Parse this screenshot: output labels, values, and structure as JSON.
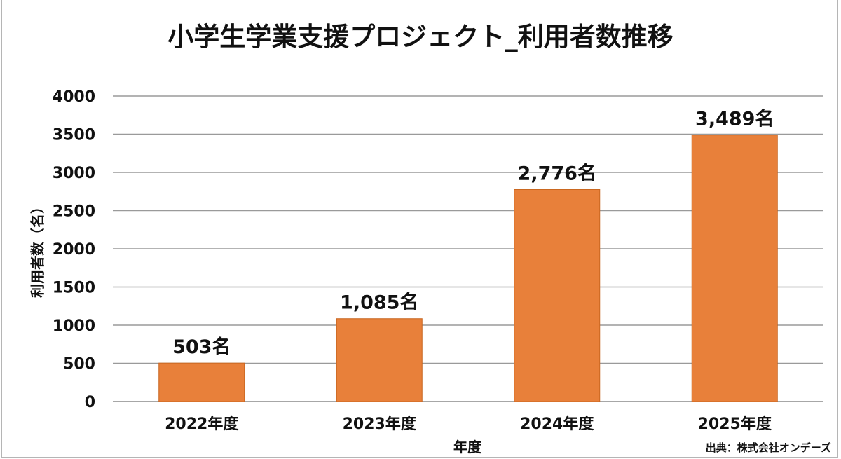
{
  "chart_data": {
    "type": "bar",
    "title": "小学生学業支援プロジェクト_利用者数推移",
    "xlabel": "年度",
    "ylabel": "利用者数（名）",
    "categories": [
      "2022年度",
      "2023年度",
      "2024年度",
      "2025年度"
    ],
    "values": [
      503,
      1085,
      2776,
      3489
    ],
    "data_labels": [
      "503名",
      "1,085名",
      "2,776名",
      "3,489名"
    ],
    "ylim": [
      0,
      4000
    ],
    "yticks": [
      0,
      500,
      1000,
      1500,
      2000,
      2500,
      3000,
      3500,
      4000
    ],
    "grid": true,
    "bar_color": "#E8803A",
    "source": "出典：株式会社オンデーズ"
  }
}
